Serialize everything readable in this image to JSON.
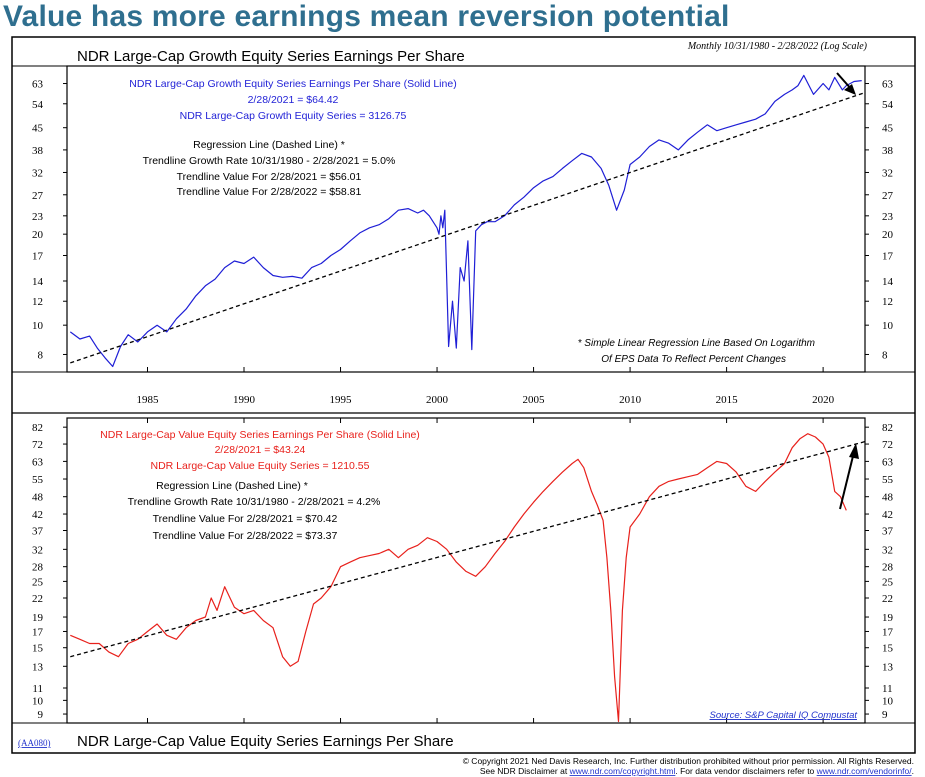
{
  "headline": "Value has more earnings mean reversion potential",
  "colors": {
    "headline": "#2f6f8f",
    "growth": "#1f1fd6",
    "value": "#e8211c",
    "link": "#2233cc",
    "frame": "#000000"
  },
  "header": {
    "top_title": "NDR Large-Cap Growth Equity Series Earnings Per Share",
    "period_note": "Monthly 10/31/1980 - 2/28/2022 (Log Scale)",
    "bottom_title": "NDR Large-Cap Value Equity Series Earnings Per Share",
    "code": "(AA080)"
  },
  "footer": {
    "line1": "© Copyright 2021 Ned Davis Research, Inc.  Further distribution prohibited without prior permission.  All Rights Reserved.",
    "line2_a": "See NDR Disclaimer at ",
    "line2_link1": "www.ndr.com/copyright.html",
    "line2_b": ". For data vendor disclaimers refer to ",
    "line2_link2": "www.ndr.com/vendorinfo/",
    "line2_c": "."
  },
  "x_ticks": [
    "1985",
    "1990",
    "1995",
    "2000",
    "2005",
    "2010",
    "2015",
    "2020"
  ],
  "top_panel": {
    "legend": [
      "NDR Large-Cap Growth Equity Series Earnings Per Share (Solid Line)",
      "2/28/2021 = $64.42",
      "NDR Large-Cap Growth Equity Series = 3126.75"
    ],
    "regression": [
      "Regression Line (Dashed Line) *",
      "Trendline Growth Rate 10/31/1980 - 2/28/2021 = 5.0%",
      "Trendline Value For 2/28/2021 = $56.01",
      "Trendline Value For 2/28/2022 = $58.81"
    ],
    "footnote": [
      "* Simple Linear Regression Line Based On Logarithm",
      "Of EPS Data To Reflect Percent Changes"
    ]
  },
  "bottom_panel": {
    "legend": [
      "NDR Large-Cap Value Equity Series Earnings Per Share (Solid Line)",
      "2/28/2021 = $43.24",
      "NDR Large-Cap Value Equity Series = 1210.55"
    ],
    "regression": [
      "Regression Line (Dashed Line) *",
      "Trendline Growth Rate 10/31/1980 - 2/28/2021 = 4.2%",
      "Trendline Value For 2/28/2021 = $70.42",
      "Trendline Value For 2/28/2022 = $73.37"
    ],
    "source": "Source: S&P Capital IQ Compustat"
  },
  "chart_data": [
    {
      "type": "line",
      "title": "NDR Large-Cap Growth Equity Series Earnings Per Share",
      "subtitle": "Monthly 10/31/1980 - 2/28/2022 (Log Scale)",
      "y_scale": "log",
      "xlim": [
        1980.83,
        2022.17
      ],
      "ylim": [
        7,
        72
      ],
      "y_ticks": [
        8,
        10,
        12,
        14,
        17,
        20,
        23,
        27,
        32,
        38,
        45,
        54,
        63
      ],
      "grid": false,
      "series": [
        {
          "style": "solid",
          "color": "#1f1fd6",
          "x": [
            1981.0,
            1981.5,
            1982.0,
            1982.4,
            1982.8,
            1983.2,
            1983.6,
            1984.0,
            1984.5,
            1985.0,
            1985.5,
            1986.0,
            1986.5,
            1987.0,
            1987.5,
            1988.0,
            1988.5,
            1989.0,
            1989.5,
            1990.0,
            1990.5,
            1991.0,
            1991.5,
            1992.0,
            1992.5,
            1993.0,
            1993.5,
            1994.0,
            1994.5,
            1995.0,
            1995.5,
            1996.0,
            1996.5,
            1997.0,
            1997.5,
            1998.0,
            1998.5,
            1999.0,
            1999.3,
            1999.6,
            2000.0,
            2000.1,
            2000.2,
            2000.3,
            2000.4,
            2000.6,
            2000.8,
            2001.0,
            2001.2,
            2001.4,
            2001.6,
            2001.8,
            2002.0,
            2002.3,
            2002.6,
            2003.0,
            2003.5,
            2004.0,
            2004.5,
            2005.0,
            2005.5,
            2006.0,
            2006.5,
            2007.0,
            2007.5,
            2008.0,
            2008.5,
            2008.9,
            2009.3,
            2009.7,
            2010.0,
            2010.5,
            2011.0,
            2011.5,
            2012.0,
            2012.5,
            2013.0,
            2013.5,
            2014.0,
            2014.5,
            2015.0,
            2015.5,
            2016.0,
            2016.5,
            2017.0,
            2017.5,
            2018.0,
            2018.4,
            2018.7,
            2019.0,
            2019.5,
            2020.0,
            2020.3,
            2020.6,
            2021.0,
            2021.2,
            2021.6,
            2022.0
          ],
          "y": [
            9.5,
            9.0,
            9.2,
            8.4,
            7.8,
            7.3,
            8.5,
            9.3,
            8.8,
            9.5,
            10.0,
            9.5,
            10.5,
            11.3,
            12.5,
            13.5,
            14.2,
            15.5,
            16.3,
            16.0,
            16.8,
            15.5,
            14.6,
            14.4,
            14.5,
            14.3,
            15.5,
            16.0,
            17.0,
            17.8,
            19.0,
            20.2,
            21.0,
            21.5,
            22.5,
            24.0,
            24.3,
            23.5,
            24.0,
            23.0,
            21.0,
            20.0,
            23.0,
            21.0,
            24.0,
            8.5,
            12.0,
            8.4,
            15.5,
            14.0,
            19.0,
            8.3,
            20.5,
            21.5,
            22.0,
            22.0,
            23.0,
            25.0,
            26.5,
            28.5,
            30.0,
            31.0,
            33.0,
            35.0,
            37.0,
            36.0,
            33.0,
            29.0,
            24.0,
            28.0,
            34.0,
            36.0,
            39.0,
            41.0,
            40.0,
            38.0,
            41.0,
            43.5,
            46.0,
            44.0,
            45.0,
            46.0,
            47.0,
            48.0,
            50.0,
            55.0,
            58.0,
            60.0,
            62.0,
            67.0,
            58.0,
            63.0,
            60.0,
            66.0,
            60.0,
            62.0,
            64.0,
            64.4
          ]
        },
        {
          "style": "dashed",
          "color": "#000000",
          "x": [
            1981.0,
            2022.17
          ],
          "y": [
            7.5,
            58.81
          ]
        }
      ]
    },
    {
      "type": "line",
      "title": "NDR Large-Cap Value Equity Series Earnings Per Share",
      "y_scale": "log",
      "xlim": [
        1980.83,
        2022.17
      ],
      "ylim": [
        8.4,
        88
      ],
      "y_ticks": [
        9,
        10,
        11,
        13,
        15,
        17,
        19,
        22,
        25,
        28,
        32,
        37,
        42,
        48,
        55,
        63,
        72,
        82
      ],
      "grid": false,
      "series": [
        {
          "style": "solid",
          "color": "#e8211c",
          "x": [
            1981.0,
            1981.5,
            1982.0,
            1982.5,
            1983.0,
            1983.5,
            1984.0,
            1984.5,
            1985.0,
            1985.5,
            1986.0,
            1986.5,
            1987.0,
            1987.5,
            1988.0,
            1988.3,
            1988.6,
            1989.0,
            1989.5,
            1990.0,
            1990.5,
            1991.0,
            1991.5,
            1992.0,
            1992.4,
            1992.8,
            1993.2,
            1993.6,
            1994.0,
            1994.5,
            1995.0,
            1995.5,
            1996.0,
            1996.5,
            1997.0,
            1997.5,
            1998.0,
            1998.5,
            1999.0,
            1999.5,
            2000.0,
            2000.5,
            2001.0,
            2001.5,
            2002.0,
            2002.5,
            2003.0,
            2003.5,
            2004.0,
            2004.5,
            2005.0,
            2005.5,
            2006.0,
            2006.5,
            2007.0,
            2007.3,
            2007.6,
            2008.0,
            2008.3,
            2008.6,
            2008.8,
            2009.0,
            2009.2,
            2009.4,
            2009.6,
            2009.8,
            2010.0,
            2010.5,
            2011.0,
            2011.5,
            2012.0,
            2012.5,
            2013.0,
            2013.5,
            2014.0,
            2014.5,
            2015.0,
            2015.5,
            2016.0,
            2016.5,
            2017.0,
            2017.5,
            2018.0,
            2018.4,
            2018.8,
            2019.2,
            2019.6,
            2020.0,
            2020.3,
            2020.6,
            2020.9,
            2021.2
          ],
          "y": [
            16.5,
            16.0,
            15.5,
            15.5,
            14.5,
            14.0,
            15.5,
            16.0,
            17.0,
            18.0,
            16.5,
            16.0,
            17.5,
            18.5,
            19.0,
            22.0,
            20.0,
            24.0,
            20.5,
            19.5,
            20.0,
            18.5,
            17.5,
            14.0,
            13.0,
            13.5,
            17.0,
            21.0,
            22.0,
            24.0,
            28.0,
            29.0,
            30.0,
            30.5,
            31.0,
            32.0,
            30.0,
            32.0,
            33.0,
            35.0,
            34.0,
            32.0,
            29.0,
            27.0,
            26.0,
            28.0,
            31.0,
            34.0,
            38.0,
            42.0,
            46.0,
            50.0,
            54.0,
            58.0,
            62.0,
            64.0,
            60.0,
            50.0,
            45.0,
            40.0,
            30.0,
            20.0,
            12.0,
            8.5,
            20.0,
            30.0,
            38.0,
            42.0,
            48.0,
            52.0,
            54.0,
            55.0,
            56.0,
            57.0,
            60.0,
            63.0,
            62.0,
            58.0,
            52.0,
            50.0,
            54.0,
            58.0,
            62.0,
            70.0,
            75.0,
            78.0,
            76.0,
            72.0,
            65.0,
            50.0,
            48.0,
            43.2
          ]
        },
        {
          "style": "dashed",
          "color": "#000000",
          "x": [
            1981.0,
            2022.17
          ],
          "y": [
            14.0,
            73.37
          ]
        }
      ]
    }
  ]
}
